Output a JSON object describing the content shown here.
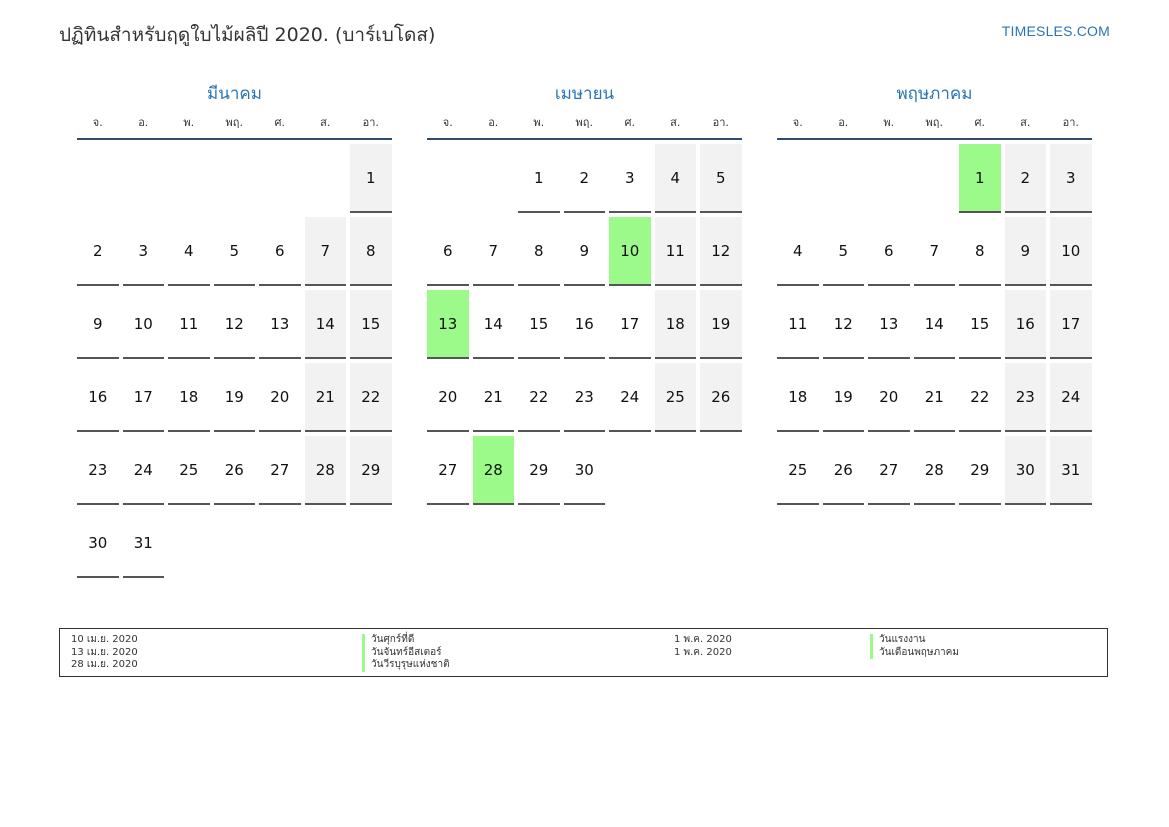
{
  "header": {
    "title": "ปฏิทินสำหรับฤดูใบไม้ผลิปี 2020. (บาร์เบโดส)",
    "brand": "TIMESLES.COM"
  },
  "weekdays": [
    "จ.",
    "อ.",
    "พ.",
    "พฤ.",
    "ศ.",
    "ส.",
    "อา."
  ],
  "colors": {
    "holiday": "#9cfa8a",
    "weekend": "#f2f2f2",
    "accent": "#2a74b5"
  },
  "months": [
    {
      "name": "มีนาคม",
      "first_weekday_index": 6,
      "days_in_month": 31,
      "holidays": []
    },
    {
      "name": "เมษายน",
      "first_weekday_index": 2,
      "days_in_month": 30,
      "holidays": [
        10,
        13,
        28
      ]
    },
    {
      "name": "พฤษภาคม",
      "first_weekday_index": 4,
      "days_in_month": 31,
      "holidays": [
        1
      ]
    }
  ],
  "legend": {
    "left": [
      {
        "date": "10 เม.ย. 2020",
        "name": "วันศุกร์ที่ดี"
      },
      {
        "date": "13 เม.ย. 2020",
        "name": "วันจันทร์อีสเตอร์"
      },
      {
        "date": "28 เม.ย. 2020",
        "name": "วันวีรบุรุษแห่งชาติ"
      }
    ],
    "right": [
      {
        "date": "1 พ.ค. 2020",
        "name": "วันแรงงาน"
      },
      {
        "date": "1 พ.ค. 2020",
        "name": "วันเดือนพฤษภาคม"
      }
    ]
  }
}
